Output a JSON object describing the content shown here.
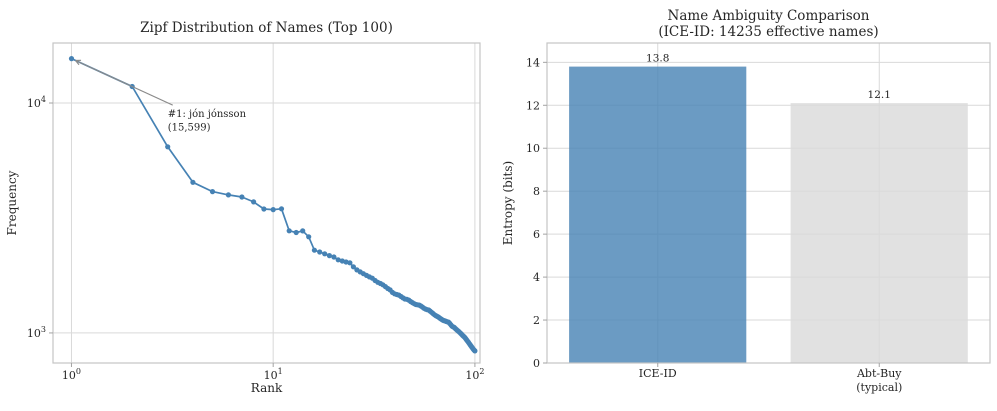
{
  "figure": {
    "background": "#ffffff",
    "text_color": "#262626",
    "grid_color": "#d9d9d9",
    "spine_color": "#c4c4c4",
    "tick_color": "#a3a3a3"
  },
  "chart_data": [
    {
      "id": "zipf",
      "type": "line",
      "title": "Zipf Distribution of Names (Top 100)",
      "xlabel": "Rank",
      "ylabel": "Frequency",
      "xscale": "log",
      "yscale": "log",
      "grid": true,
      "legend": "none",
      "xlim": [
        0.81,
        106
      ],
      "ylim": [
        740,
        18240
      ],
      "xticks": [
        {
          "value": 1,
          "base": "10",
          "exp": "0"
        },
        {
          "value": 10,
          "base": "10",
          "exp": "1"
        },
        {
          "value": 100,
          "base": "10",
          "exp": "2"
        }
      ],
      "yticks": [
        {
          "value": 1000,
          "base": "10",
          "exp": "3"
        },
        {
          "value": 10000,
          "base": "10",
          "exp": "4"
        }
      ],
      "line_color": "#4682b4",
      "marker": "circle",
      "annotation": {
        "lines": [
          "#1: jón jónsson",
          "(15,599)"
        ],
        "xy": [
          1,
          15599
        ],
        "xytext": [
          3.0,
          9500
        ],
        "arrow_color": "#8a8a8a"
      },
      "x": [
        1,
        2,
        3,
        4,
        5,
        6,
        7,
        8,
        9,
        10,
        11,
        12,
        13,
        14,
        15,
        16,
        17,
        18,
        19,
        20,
        21,
        22,
        23,
        24,
        25,
        26,
        27,
        28,
        29,
        30,
        31,
        32,
        33,
        34,
        35,
        36,
        37,
        38,
        39,
        40,
        41,
        42,
        43,
        44,
        45,
        46,
        47,
        48,
        49,
        50,
        51,
        52,
        53,
        54,
        55,
        56,
        57,
        58,
        59,
        60,
        61,
        62,
        63,
        64,
        65,
        66,
        67,
        68,
        69,
        70,
        71,
        72,
        73,
        74,
        75,
        76,
        77,
        78,
        79,
        80,
        81,
        82,
        83,
        84,
        85,
        86,
        87,
        88,
        89,
        90,
        91,
        92,
        93,
        94,
        95,
        96,
        97,
        98,
        99,
        100
      ],
      "y": [
        15599,
        11804,
        6452,
        4519,
        4117,
        3985,
        3902,
        3715,
        3460,
        3440,
        3465,
        2781,
        2733,
        2778,
        2620,
        2290,
        2250,
        2210,
        2170,
        2140,
        2080,
        2055,
        2035,
        2018,
        1940,
        1880,
        1843,
        1810,
        1780,
        1752,
        1730,
        1690,
        1660,
        1640,
        1620,
        1590,
        1560,
        1538,
        1500,
        1480,
        1470,
        1460,
        1440,
        1420,
        1405,
        1400,
        1390,
        1370,
        1355,
        1340,
        1330,
        1325,
        1322,
        1310,
        1295,
        1280,
        1270,
        1262,
        1258,
        1245,
        1230,
        1215,
        1200,
        1190,
        1180,
        1172,
        1160,
        1150,
        1140,
        1133,
        1128,
        1122,
        1118,
        1115,
        1100,
        1085,
        1070,
        1063,
        1057,
        1045,
        1035,
        1025,
        1015,
        1006,
        995,
        985,
        975,
        966,
        957,
        945,
        933,
        921,
        910,
        897,
        885,
        874,
        863,
        852,
        843,
        835
      ]
    },
    {
      "id": "ambiguity",
      "type": "bar",
      "title_lines": [
        "Name Ambiguity Comparison",
        "(ICE-ID: 14235 effective names)"
      ],
      "xlabel": "",
      "ylabel": "Entropy (bits)",
      "grid": true,
      "legend": "none",
      "categories": [
        [
          "ICE-ID"
        ],
        [
          "Abt-Buy",
          "(typical)"
        ]
      ],
      "values": [
        13.8,
        12.1
      ],
      "bar_labels": [
        "13.8",
        "12.1"
      ],
      "bar_colors": [
        "#4682b4",
        "#d9d9d9"
      ],
      "bar_fill_opacity": 0.8,
      "ylim": [
        0,
        14.9
      ],
      "yticks": [
        0,
        2,
        4,
        6,
        8,
        10,
        12,
        14
      ]
    }
  ]
}
